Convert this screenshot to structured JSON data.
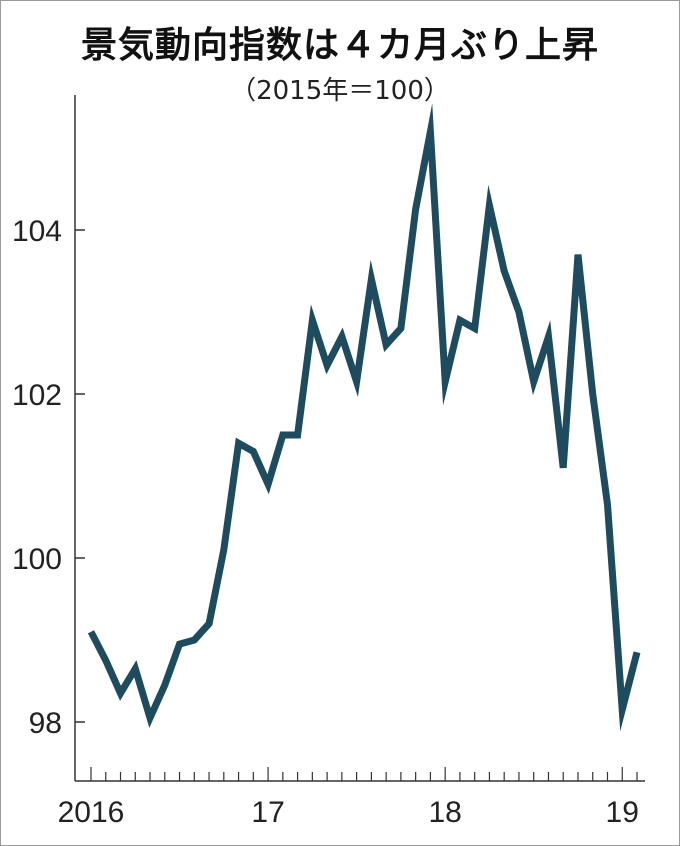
{
  "title": "景気動向指数は４カ月ぶり上昇",
  "subtitle": "（2015年＝100）",
  "chart_data": {
    "type": "line",
    "title": "景気動向指数は４カ月ぶり上昇",
    "subtitle": "（2015年＝100）",
    "xlabel": "",
    "ylabel": "",
    "ylim": [
      97.2,
      105.5
    ],
    "yticks": [
      98,
      100,
      102,
      104
    ],
    "ytick_labels": [
      "98",
      "100",
      "102",
      "104"
    ],
    "xtick_labels": [
      {
        "label": "2016",
        "index": 0
      },
      {
        "label": "17",
        "index": 12
      },
      {
        "label": "18",
        "index": 24
      },
      {
        "label": "19",
        "index": 36
      }
    ],
    "grid": false,
    "line_color": "#1e4b5e",
    "series": [
      {
        "values": [
          99.1,
          98.75,
          98.35,
          98.65,
          98.05,
          98.45,
          98.95,
          99.0,
          99.2,
          100.1,
          101.4,
          101.3,
          100.9,
          101.5,
          101.5,
          102.9,
          102.35,
          102.7,
          102.15,
          103.4,
          102.6,
          102.8,
          104.25,
          105.2,
          102.15,
          102.9,
          102.8,
          104.3,
          103.5,
          103.0,
          102.15,
          102.7,
          101.1,
          103.7,
          102.0,
          100.65,
          98.15,
          98.85
        ]
      }
    ]
  }
}
